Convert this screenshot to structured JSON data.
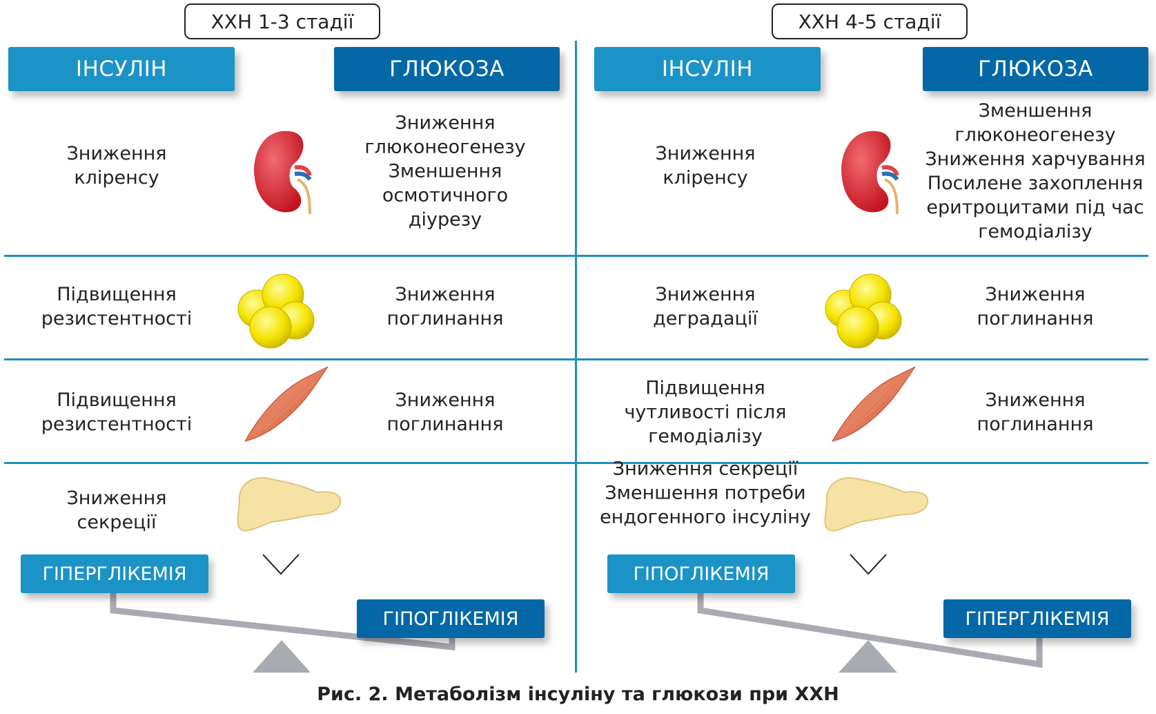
{
  "left_panel": {
    "stage_title": "ХХН 1-3 стадії",
    "insulin_header": "ІНСУЛІН",
    "glucose_header": "ГЛЮКОЗА",
    "rows": [
      {
        "organ": "kidney",
        "insulin": [
          "Зниження",
          "кліренсу"
        ],
        "glucose": [
          "Зниження",
          "глюконеогенезу",
          "Зменшення",
          "осмотичного",
          "діурезу"
        ]
      },
      {
        "organ": "adipose-tissue",
        "insulin": [
          "Підвищення",
          "резистентності"
        ],
        "glucose": [
          "Зниження",
          "поглинання"
        ]
      },
      {
        "organ": "muscle",
        "insulin": [
          "Підвищення",
          "резистентності"
        ],
        "glucose": [
          "Зниження",
          "поглинання"
        ]
      },
      {
        "organ": "pancreas",
        "insulin": [
          "Зниження",
          "секреції"
        ],
        "glucose": []
      }
    ],
    "balance_high": "ГІПЕРГЛІКЕМІЯ",
    "balance_low": "ГІПОГЛІКЕМІЯ"
  },
  "right_panel": {
    "stage_title": "ХХН 4-5 стадії",
    "insulin_header": "ІНСУЛІН",
    "glucose_header": "ГЛЮКОЗА",
    "rows": [
      {
        "organ": "kidney",
        "insulin": [
          "Зниження",
          "кліренсу"
        ],
        "glucose": [
          "Зменшення",
          "глюконеогенезу",
          "Зниження харчування",
          "Посилене захоплення",
          "еритроцитами під час",
          "гемодіалізу"
        ]
      },
      {
        "organ": "adipose-tissue",
        "insulin": [
          "Зниження",
          "деградації"
        ],
        "glucose": [
          "Зниження",
          "поглинання"
        ]
      },
      {
        "organ": "muscle",
        "insulin": [
          "Підвищення",
          "чутливості після",
          "гемодіалізу"
        ],
        "glucose": [
          "Зниження",
          "поглинання"
        ]
      },
      {
        "organ": "pancreas",
        "insulin": [
          "Зниження секреції",
          "Зменшення потреби",
          "ендогенного інсуліну"
        ],
        "glucose": []
      }
    ],
    "balance_high": "ГІПОГЛІКЕМІЯ",
    "balance_low": "ГІПЕРГЛІКЕМІЯ"
  },
  "caption": "Рис. 2. Метаболізм інсуліну та глюкози при ХХН",
  "colors": {
    "insulin": "#1b93c7",
    "glucose": "#0468a6",
    "divider": "#1e8fc2",
    "balance": "#a9abb3"
  }
}
